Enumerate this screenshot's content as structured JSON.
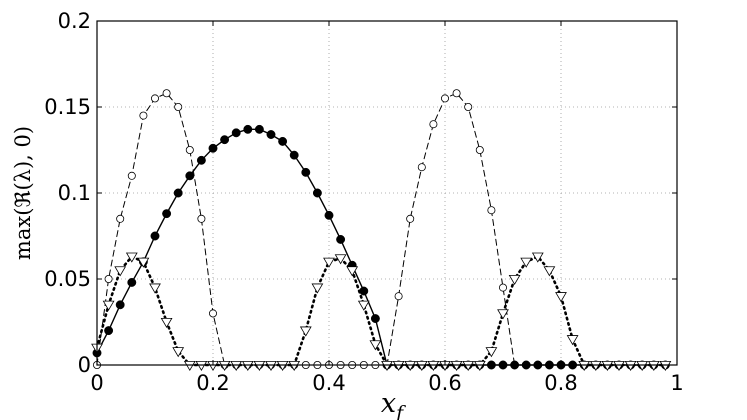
{
  "chart_data": {
    "type": "line",
    "title": "",
    "xlabel": "x_f",
    "ylabel": "max(ℜ(λ), 0)",
    "xlim": [
      0,
      1
    ],
    "ylim": [
      0,
      0.2
    ],
    "xticks": [
      0,
      0.2,
      0.4,
      0.6,
      0.8,
      1
    ],
    "yticks": [
      0,
      0.05,
      0.1,
      0.15,
      0.2
    ],
    "xtick_labels": [
      "0",
      "0.2",
      "0.4",
      "0.6",
      "0.8",
      "1"
    ],
    "ytick_labels": [
      "0",
      "0.05",
      "0.1",
      "0.15",
      "0.2"
    ],
    "grid": true,
    "grid_style": "dotted",
    "legend": false,
    "x": [
      0.0,
      0.02,
      0.04,
      0.06,
      0.08,
      0.1,
      0.12,
      0.14,
      0.16,
      0.18,
      0.2,
      0.22,
      0.24,
      0.26,
      0.28,
      0.3,
      0.32,
      0.34,
      0.36,
      0.38,
      0.4,
      0.42,
      0.44,
      0.46,
      0.48,
      0.5,
      0.52,
      0.54,
      0.56,
      0.58,
      0.6,
      0.62,
      0.64,
      0.66,
      0.68,
      0.7,
      0.72,
      0.74,
      0.76,
      0.78,
      0.8,
      0.82,
      0.84,
      0.86,
      0.88,
      0.9,
      0.92,
      0.94,
      0.96,
      0.98
    ],
    "series": [
      {
        "line": "dashed",
        "marker": "open-circle",
        "values": [
          0.0,
          0.05,
          0.085,
          0.11,
          0.145,
          0.155,
          0.158,
          0.15,
          0.125,
          0.085,
          0.03,
          0.0,
          0.0,
          0.0,
          0.0,
          0.0,
          0.0,
          0.0,
          0.0,
          0.0,
          0.0,
          0.0,
          0.0,
          0.0,
          0.0,
          0.0,
          0.04,
          0.085,
          0.115,
          0.14,
          0.155,
          0.158,
          0.15,
          0.125,
          0.09,
          0.045,
          0.0,
          0.0,
          0.0,
          0.0,
          0.0,
          0.0,
          0.0,
          0.0,
          0.0,
          0.0,
          0.0,
          0.0,
          0.0,
          0.0
        ]
      },
      {
        "line": "solid",
        "marker": "filled-circle",
        "values": [
          0.007,
          0.02,
          0.035,
          0.048,
          0.06,
          0.075,
          0.088,
          0.1,
          0.11,
          0.119,
          0.126,
          0.131,
          0.135,
          0.137,
          0.137,
          0.134,
          0.13,
          0.122,
          0.112,
          0.1,
          0.087,
          0.073,
          0.058,
          0.043,
          0.027,
          0.0,
          0.0,
          0.0,
          0.0,
          0.0,
          0.0,
          0.0,
          0.0,
          0.0,
          0.0,
          0.0,
          0.0,
          0.0,
          0.0,
          0.0,
          0.0,
          0.0,
          0.0,
          0.0,
          0.0,
          0.0,
          0.0,
          0.0,
          0.0,
          0.0
        ]
      },
      {
        "line": "dotted",
        "marker": "open-triangle-down",
        "values": [
          0.01,
          0.035,
          0.055,
          0.063,
          0.06,
          0.045,
          0.025,
          0.008,
          0.0,
          0.0,
          0.0,
          0.0,
          0.0,
          0.0,
          0.0,
          0.0,
          0.0,
          0.0,
          0.02,
          0.045,
          0.06,
          0.062,
          0.055,
          0.035,
          0.012,
          0.0,
          0.0,
          0.0,
          0.0,
          0.0,
          0.0,
          0.0,
          0.0,
          0.0,
          0.008,
          0.03,
          0.05,
          0.06,
          0.063,
          0.055,
          0.04,
          0.015,
          0.0,
          0.0,
          0.0,
          0.0,
          0.0,
          0.0,
          0.0,
          0.0
        ]
      }
    ]
  }
}
